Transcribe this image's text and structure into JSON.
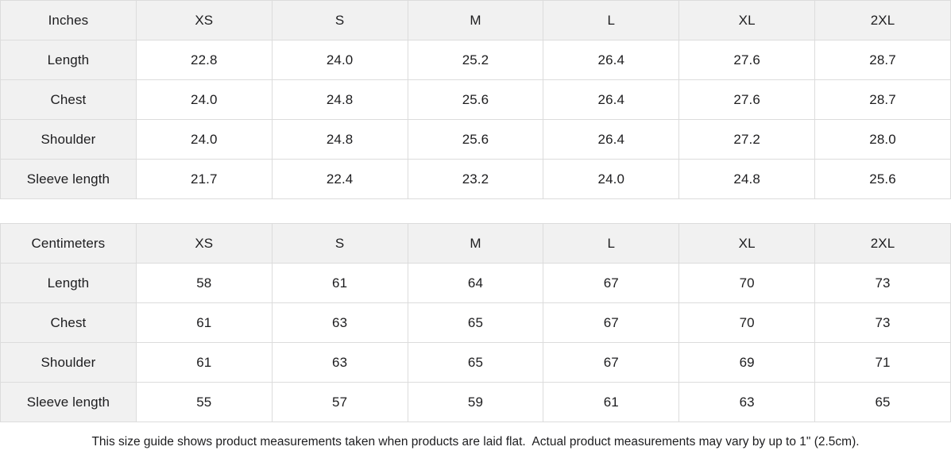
{
  "colors": {
    "header_bg": "#f1f1f1",
    "border": "#dcdcdc",
    "text": "#1d1d1f",
    "background": "#ffffff"
  },
  "tables": [
    {
      "unit_label": "Inches",
      "sizes": [
        "XS",
        "S",
        "M",
        "L",
        "XL",
        "2XL"
      ],
      "rows": [
        {
          "label": "Length",
          "values": [
            "22.8",
            "24.0",
            "25.2",
            "26.4",
            "27.6",
            "28.7"
          ]
        },
        {
          "label": "Chest",
          "values": [
            "24.0",
            "24.8",
            "25.6",
            "26.4",
            "27.6",
            "28.7"
          ]
        },
        {
          "label": "Shoulder",
          "values": [
            "24.0",
            "24.8",
            "25.6",
            "26.4",
            "27.2",
            "28.0"
          ]
        },
        {
          "label": "Sleeve length",
          "values": [
            "21.7",
            "22.4",
            "23.2",
            "24.0",
            "24.8",
            "25.6"
          ]
        }
      ]
    },
    {
      "unit_label": "Centimeters",
      "sizes": [
        "XS",
        "S",
        "M",
        "L",
        "XL",
        "2XL"
      ],
      "rows": [
        {
          "label": "Length",
          "values": [
            "58",
            "61",
            "64",
            "67",
            "70",
            "73"
          ]
        },
        {
          "label": "Chest",
          "values": [
            "61",
            "63",
            "65",
            "67",
            "70",
            "73"
          ]
        },
        {
          "label": "Shoulder",
          "values": [
            "61",
            "63",
            "65",
            "67",
            "69",
            "71"
          ]
        },
        {
          "label": "Sleeve length",
          "values": [
            "55",
            "57",
            "59",
            "61",
            "63",
            "65"
          ]
        }
      ]
    }
  ],
  "footer_note": "This size guide shows product measurements taken when products are laid flat.  Actual product measurements may vary by up to 1\" (2.5cm)."
}
